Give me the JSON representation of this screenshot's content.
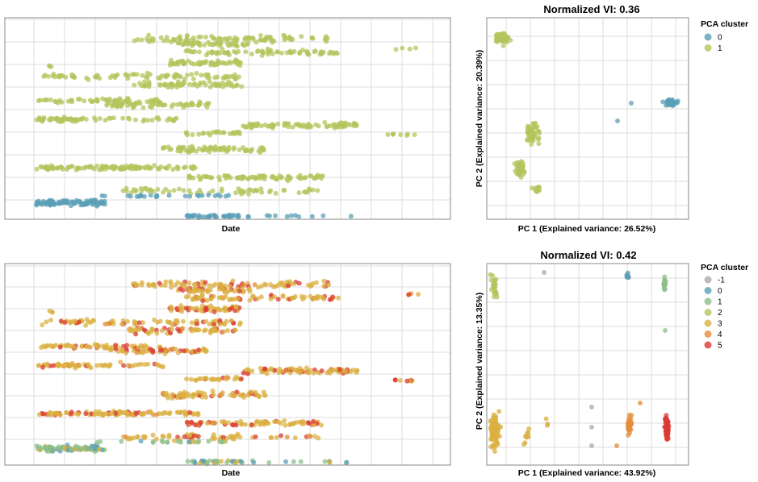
{
  "colors": {
    "c-1": "#aaaaaa",
    "c0": "#5b9fb7",
    "c1": "#8cbf88",
    "c2": "#b4c45c",
    "c3": "#dbb042",
    "c4": "#e38c3b",
    "c5": "#db3a33"
  },
  "chart_data": [
    {
      "type": "scatter",
      "panel": "top-left",
      "title": "",
      "xlabel": "Date",
      "ylabel": "",
      "x_range": [
        0,
        1
      ],
      "y_range": [
        0,
        1
      ],
      "grid": true,
      "tick_labels_visible": false,
      "series": [
        {
          "cluster": "1",
          "bands": [
            {
              "x": [
                0.15,
                0.7
              ],
              "y": 0.95
            },
            {
              "x": [
                0.05,
                0.75
              ],
              "y": 0.82
            },
            {
              "x": [
                0.1,
                0.5
              ],
              "y": 0.7
            },
            {
              "x": [
                0.05,
                0.3
              ],
              "y": 0.55
            },
            {
              "x": [
                0.55,
                0.78
              ],
              "y": 0.45
            },
            {
              "x": [
                0.3,
                0.55
              ],
              "y": 0.33
            },
            {
              "x": [
                0.05,
                0.3
              ],
              "y": 0.2
            },
            {
              "x": [
                0.55,
                0.75
              ],
              "y": 0.18
            }
          ]
        },
        {
          "cluster": "0",
          "bands": [
            {
              "x": [
                0.05,
                0.3
              ],
              "y": 0.05
            },
            {
              "x": [
                0.3,
                0.8
              ],
              "y": 0.02
            }
          ]
        }
      ]
    },
    {
      "type": "scatter",
      "panel": "top-right",
      "title": "Normalized VI: 0.36",
      "xlabel": "PC 1 (Explained variance: 26.52%)",
      "ylabel": "PC 2 (Explained variance: 20.39%)",
      "x_range": [
        0,
        1
      ],
      "y_range": [
        0,
        1
      ],
      "grid": true,
      "tick_labels_visible": false,
      "legend": {
        "title": "PCA cluster",
        "position": "right",
        "labels": [
          "0",
          "1"
        ]
      },
      "clusters": [
        {
          "label": "1",
          "centers": [
            [
              0.1,
              0.85
            ],
            [
              0.25,
              0.4
            ],
            [
              0.15,
              0.2
            ]
          ]
        },
        {
          "label": "0",
          "centers": [
            [
              0.85,
              0.5
            ],
            [
              0.65,
              0.45
            ]
          ]
        }
      ]
    },
    {
      "type": "scatter",
      "panel": "bottom-left",
      "title": "",
      "xlabel": "Date",
      "ylabel": "",
      "x_range": [
        0,
        1
      ],
      "y_range": [
        0,
        1
      ],
      "grid": true,
      "tick_labels_visible": false,
      "clusters": [
        "-1",
        "0",
        "1",
        "2",
        "3",
        "4",
        "5"
      ]
    },
    {
      "type": "scatter",
      "panel": "bottom-right",
      "title": "Normalized VI: 0.42",
      "xlabel": "PC 1 (Explained variance: 43.92%)",
      "ylabel": "PC 2 (Explained variance: 13.35%)",
      "x_range": [
        0,
        1
      ],
      "y_range": [
        0,
        1
      ],
      "grid": true,
      "tick_labels_visible": false,
      "legend": {
        "title": "PCA cluster",
        "position": "right",
        "labels": [
          "-1",
          "0",
          "1",
          "2",
          "3",
          "4",
          "5"
        ]
      },
      "clusters": [
        {
          "label": "2",
          "centers": [
            [
              0.05,
              0.85
            ]
          ]
        },
        {
          "label": "0",
          "centers": [
            [
              0.68,
              0.9
            ]
          ]
        },
        {
          "label": "1",
          "centers": [
            [
              0.85,
              0.85
            ]
          ]
        },
        {
          "label": "3",
          "centers": [
            [
              0.05,
              0.15
            ],
            [
              0.2,
              0.1
            ]
          ]
        },
        {
          "label": "-1",
          "centers": [
            [
              0.5,
              0.1
            ]
          ]
        },
        {
          "label": "4",
          "centers": [
            [
              0.7,
              0.1
            ]
          ]
        },
        {
          "label": "5",
          "centers": [
            [
              0.9,
              0.1
            ]
          ]
        }
      ]
    }
  ],
  "panels": {
    "top_left": {
      "xlabel": "Date"
    },
    "top_right": {
      "title": "Normalized VI: 0.36",
      "xlabel": "PC 1 (Explained variance: 26.52%)",
      "ylabel": "PC 2 (Explained variance: 20.39%)"
    },
    "bottom_left": {
      "xlabel": "Date"
    },
    "bottom_right": {
      "title": "Normalized VI: 0.42",
      "xlabel": "PC 1 (Explained variance: 43.92%)",
      "ylabel": "PC 2 (Explained variance: 13.35%)"
    }
  },
  "legend_top": {
    "title": "PCA cluster",
    "items": [
      {
        "label": "0",
        "color": "#5b9fb7"
      },
      {
        "label": "1",
        "color": "#b4c45c"
      }
    ]
  },
  "legend_bottom": {
    "title": "PCA cluster",
    "items": [
      {
        "label": "-1",
        "color": "#aaaaaa"
      },
      {
        "label": "0",
        "color": "#5b9fb7"
      },
      {
        "label": "1",
        "color": "#8cbf88"
      },
      {
        "label": "2",
        "color": "#b4c45c"
      },
      {
        "label": "3",
        "color": "#dbb042"
      },
      {
        "label": "4",
        "color": "#e38c3b"
      },
      {
        "label": "5",
        "color": "#db3a33"
      }
    ]
  }
}
